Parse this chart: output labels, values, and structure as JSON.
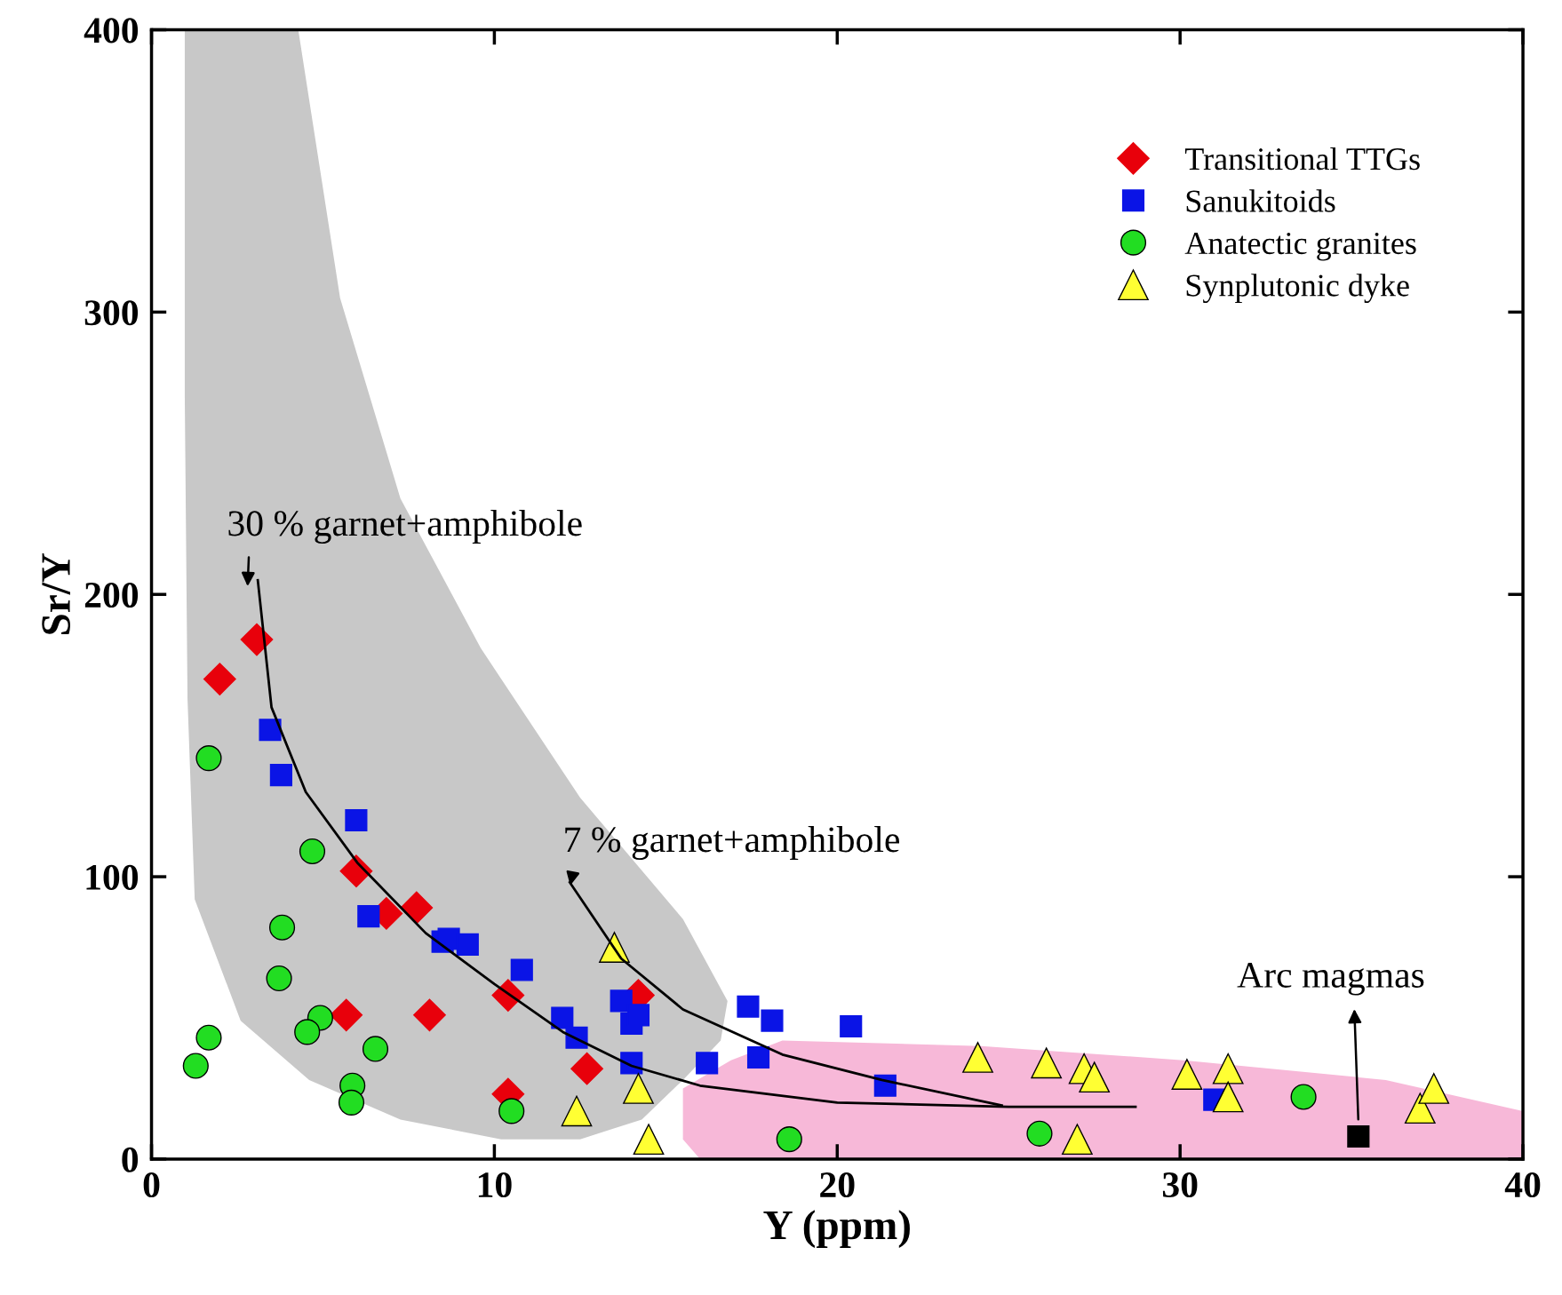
{
  "chart_data": {
    "type": "scatter",
    "xlabel": "Y (ppm)",
    "ylabel": "Sr/Y",
    "xlim": [
      0,
      40
    ],
    "ylim": [
      0,
      400
    ],
    "xticks": [
      0,
      10,
      20,
      30,
      40
    ],
    "yticks": [
      0,
      100,
      200,
      300,
      400
    ],
    "grid": false,
    "legend": "top right",
    "series": [
      {
        "type": "area",
        "color": "#c8c8c8",
        "x": [
          0.97,
          4.28,
          5.5,
          7.26,
          9.6,
          12.5,
          15.5,
          16.8,
          16.6,
          15.5,
          14.3,
          12.5,
          10.2,
          7.26,
          4.6,
          2.6,
          1.26,
          1.05,
          0.97
        ],
        "values": [
          400,
          400,
          305,
          234,
          181,
          128,
          85,
          56,
          42,
          28,
          14,
          7,
          7,
          14,
          28,
          49,
          92,
          163,
          270
        ]
      },
      {
        "type": "area",
        "color": "#f7b8d8",
        "x": [
          15.5,
          16.9,
          18.4,
          24.2,
          30.1,
          36.0,
          40,
          40,
          16.0,
          15.5
        ],
        "values": [
          25,
          35,
          42,
          40,
          35,
          28,
          17,
          0,
          0,
          7
        ]
      },
      {
        "type": "line",
        "color": "#000000",
        "marker": "none",
        "x": [
          3.1,
          3.5,
          4.5,
          6,
          8,
          10,
          12,
          14,
          16,
          20,
          25,
          28.7
        ],
        "values": [
          205,
          160,
          130,
          105,
          80,
          62,
          45,
          33,
          26,
          20,
          18.5,
          18.5
        ]
      },
      {
        "type": "line",
        "color": "#000000",
        "marker": "none",
        "x": [
          12.2,
          13.7,
          15.5,
          18.4,
          21.3,
          24.8
        ],
        "values": [
          98,
          71,
          53,
          37,
          28,
          19
        ]
      },
      {
        "name": "Transitional TTGs",
        "color": "#e8000b",
        "marker": "diamond",
        "x": [
          1.99,
          3.07,
          5.97,
          6.85,
          7.73,
          5.68,
          8.11,
          10.4,
          10.4,
          12.7,
          14.2
        ],
        "values": [
          170,
          184,
          102,
          87,
          89,
          51,
          51,
          58,
          23,
          32,
          58
        ]
      },
      {
        "name": "Sanukitoids",
        "color": "#0a14e6",
        "marker": "square",
        "x": [
          3.46,
          3.78,
          5.97,
          6.33,
          8.49,
          8.67,
          9.22,
          10.8,
          11.98,
          12.4,
          13.7,
          14.0,
          14.2,
          14.0,
          16.2,
          17.4,
          18.1,
          17.7,
          20.4,
          21.4,
          31.0
        ],
        "values": [
          152,
          136,
          120,
          86,
          77,
          78,
          76,
          67,
          50,
          43,
          56,
          48,
          51,
          34,
          34,
          54,
          49,
          36,
          47,
          26,
          21
        ]
      },
      {
        "name": "Anatectic granites",
        "color": "#22dd22",
        "marker": "circle",
        "x": [
          1.67,
          4.69,
          3.81,
          3.72,
          1.67,
          1.29,
          4.92,
          4.54,
          6.53,
          5.86,
          5.83,
          10.5,
          18.6,
          25.9,
          33.6
        ],
        "values": [
          142,
          109,
          82,
          64,
          43,
          33,
          50,
          45,
          39,
          26,
          20,
          17,
          7,
          9,
          22
        ]
      },
      {
        "name": "Synplutonic dyke",
        "color": "#ffff33",
        "marker": "triangle",
        "x": [
          13.5,
          12.4,
          14.2,
          14.5,
          24.1,
          26.1,
          27.2,
          27.5,
          27.0,
          30.2,
          31.4,
          31.4,
          37.0,
          37.4
        ],
        "values": [
          75,
          17,
          25,
          7,
          36,
          34,
          32,
          29,
          7,
          30,
          32,
          22,
          18,
          25
        ]
      },
      {
        "color": "#000000",
        "marker": "square",
        "x": [
          35.2
        ],
        "values": [
          8
        ]
      }
    ],
    "annotations": [
      "30 % garnet+amphibole",
      "7 % garnet+amphibole",
      "Arc magmas"
    ]
  }
}
